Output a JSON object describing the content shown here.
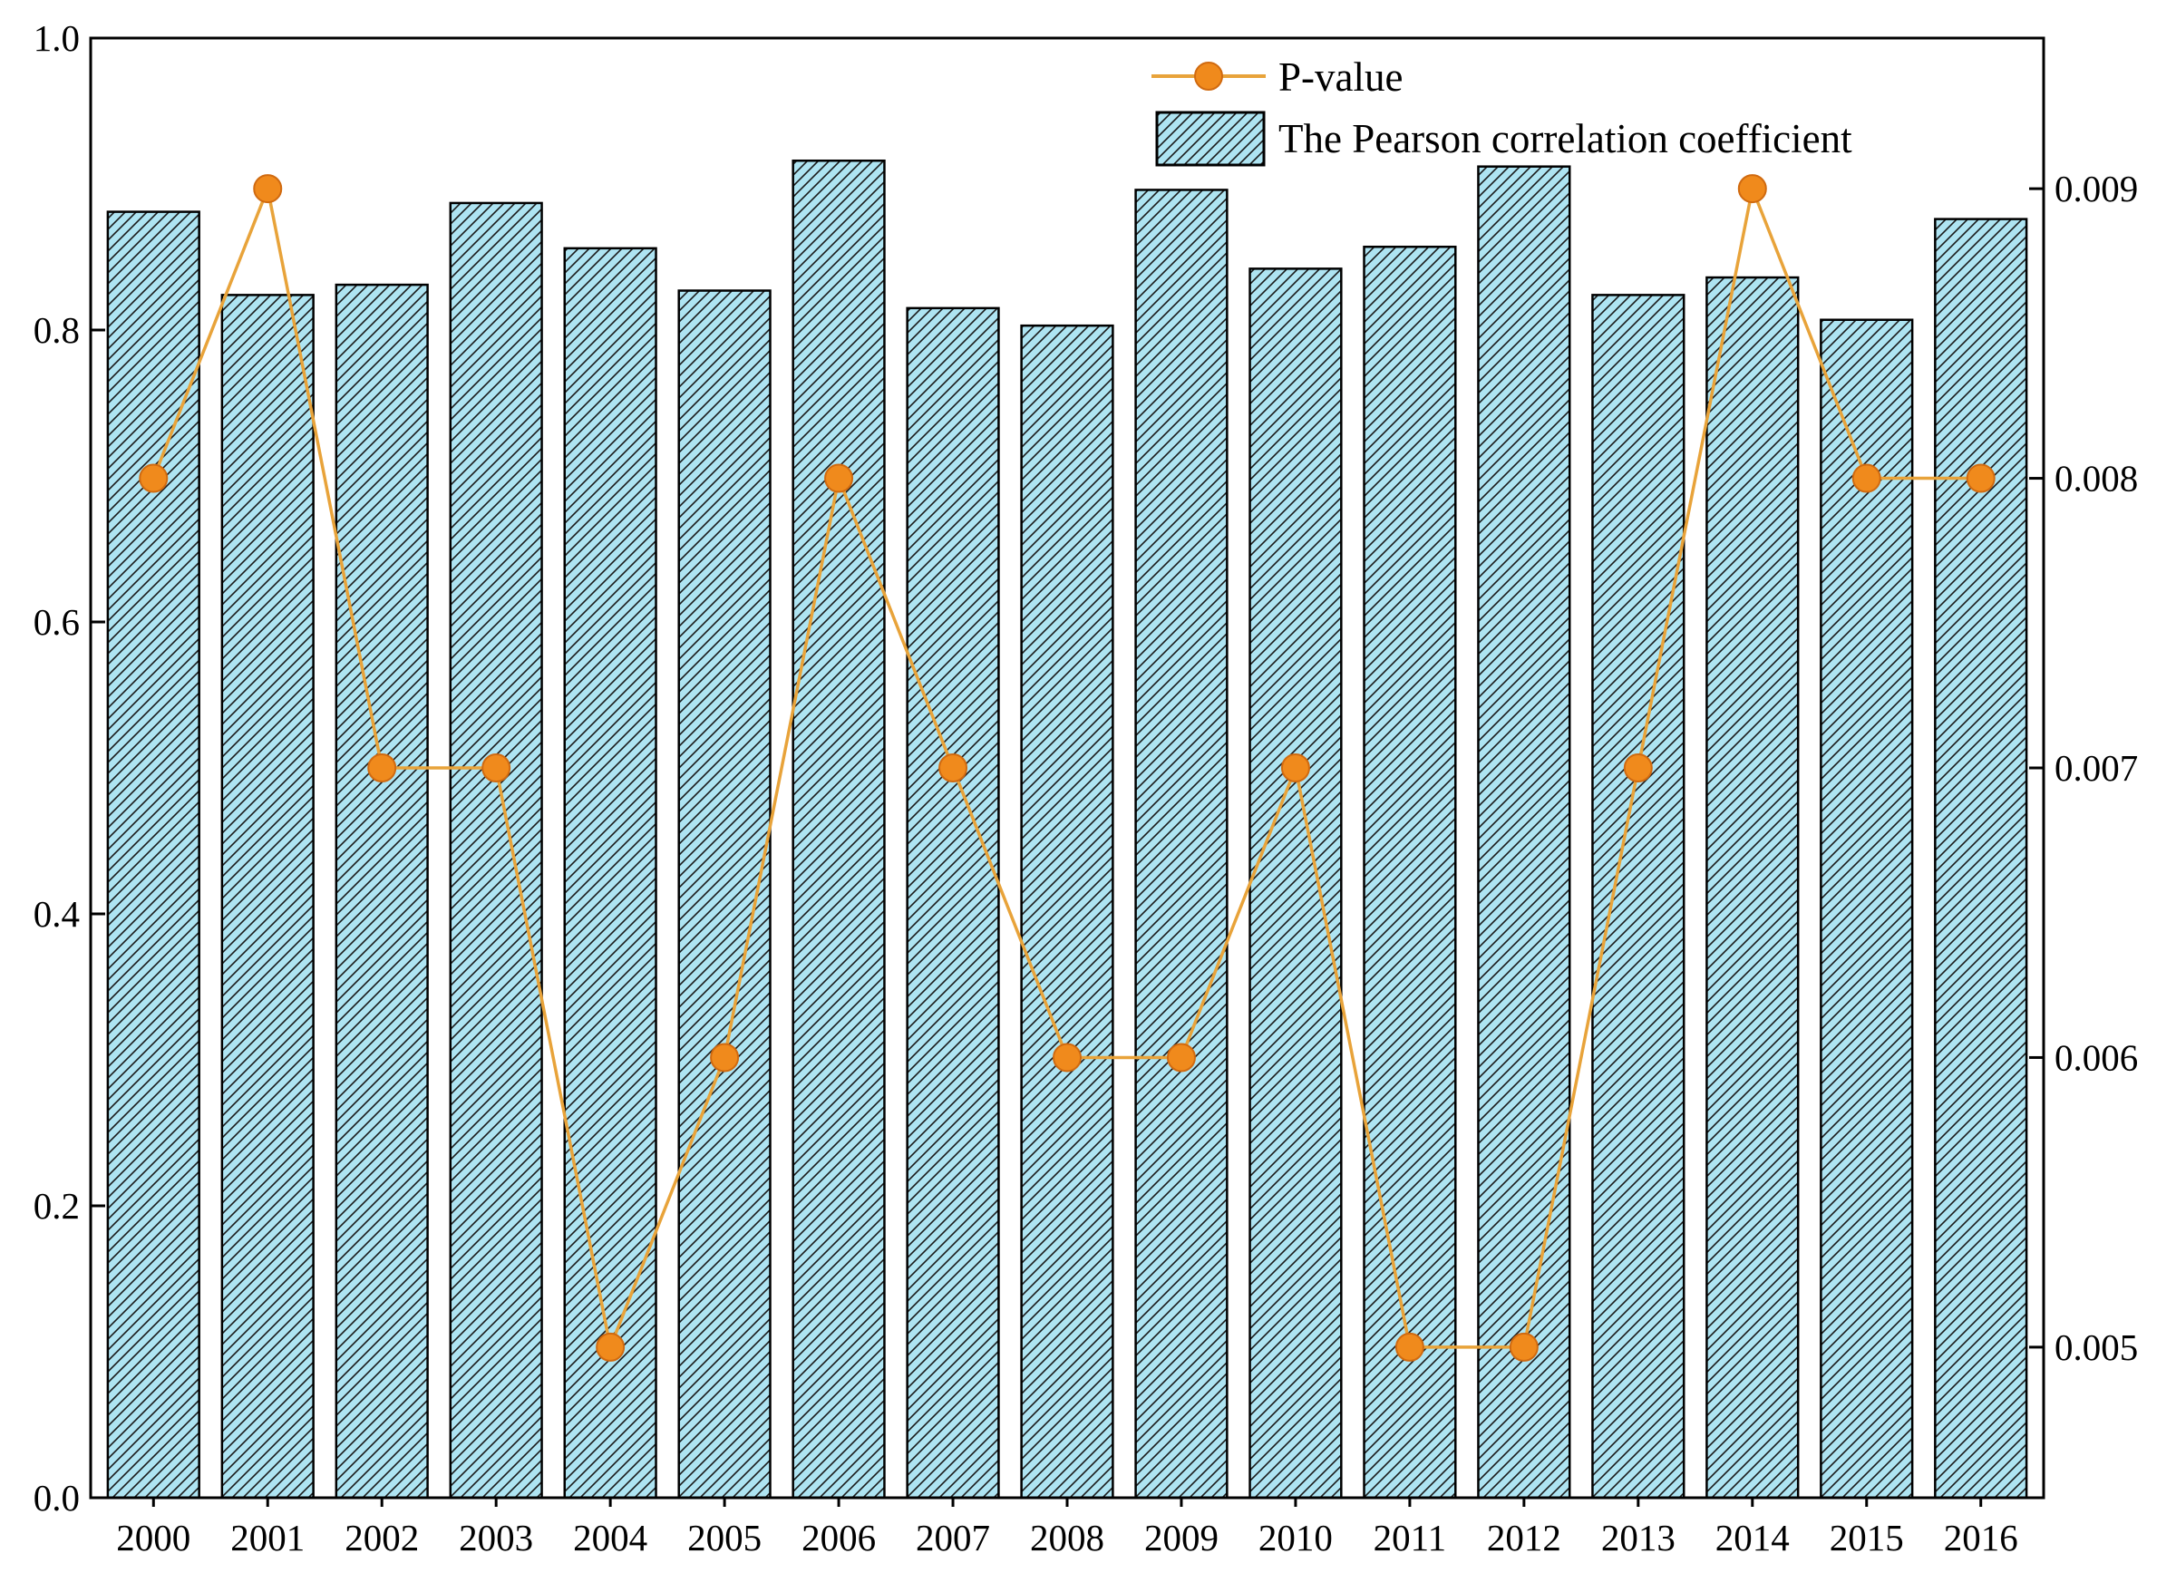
{
  "chart_data": {
    "type": "bar",
    "title": "",
    "xlabel": "",
    "ylabel": "",
    "ylabel_right": "",
    "categories": [
      "2000",
      "2001",
      "2002",
      "2003",
      "2004",
      "2005",
      "2006",
      "2007",
      "2008",
      "2009",
      "2010",
      "2011",
      "2012",
      "2013",
      "2014",
      "2015",
      "2016"
    ],
    "series": [
      {
        "name": "The Pearson correlation coefficient",
        "type": "bar",
        "axis": "left",
        "color": "#aee4f2",
        "hatch": true,
        "values": [
          0.881,
          0.824,
          0.831,
          0.887,
          0.856,
          0.827,
          0.916,
          0.815,
          0.803,
          0.896,
          0.842,
          0.857,
          0.912,
          0.824,
          0.836,
          0.807,
          0.876
        ]
      },
      {
        "name": "P-value",
        "type": "line",
        "axis": "right",
        "color": "#e8a33a",
        "marker_color": "#f08a1c",
        "values": [
          0.008,
          0.009,
          0.007,
          0.007,
          0.005,
          0.006,
          0.008,
          0.007,
          0.006,
          0.006,
          0.007,
          0.005,
          0.005,
          0.007,
          0.009,
          0.008,
          0.008
        ]
      }
    ],
    "ylim": [
      0.0,
      1.0
    ],
    "yticks": [
      "0.0",
      "0.2",
      "0.4",
      "0.6",
      "0.8",
      "1.0"
    ],
    "ylim_right": [
      0.00448,
      0.00952
    ],
    "yticks_right": [
      "0.005",
      "0.006",
      "0.007",
      "0.008",
      "0.009"
    ],
    "legend_position": "top-right",
    "legend_order": [
      "P-value",
      "The Pearson correlation coefficient"
    ],
    "grid": false
  }
}
